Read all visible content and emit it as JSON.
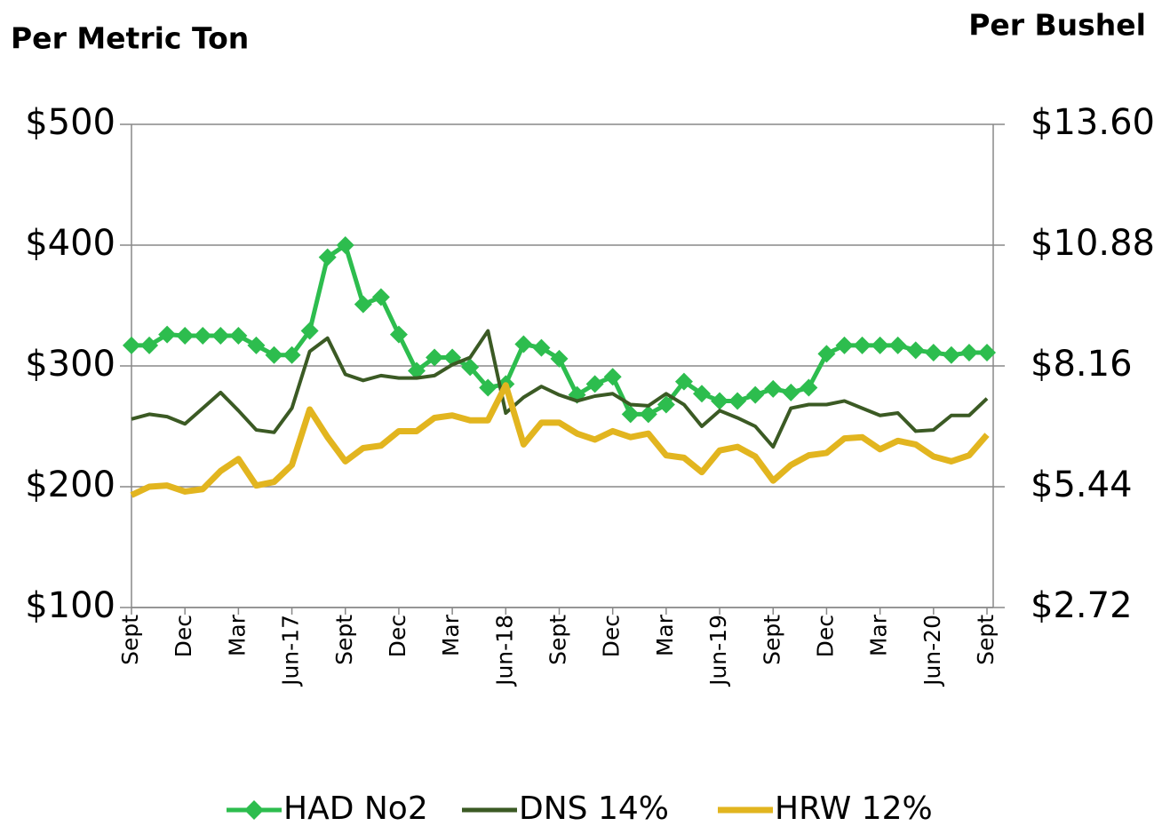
{
  "chart_data": {
    "type": "line",
    "y_axis_title": "Per Metric Ton",
    "y2_axis_title": "Per Bushel",
    "categories": [
      "Sept",
      null,
      null,
      "Dec",
      null,
      null,
      "Mar",
      null,
      null,
      "Jun-17",
      null,
      null,
      "Sept",
      null,
      null,
      "Dec",
      null,
      null,
      "Mar",
      null,
      null,
      "Jun-18",
      null,
      null,
      "Sept",
      null,
      null,
      "Dec",
      null,
      null,
      "Mar",
      null,
      null,
      "Jun-19",
      null,
      null,
      "Sept",
      null,
      null,
      "Dec",
      null,
      null,
      "Mar",
      null,
      null,
      "Jun-20",
      null,
      null,
      "Sept"
    ],
    "series": [
      {
        "name": "HAD No2",
        "color": "#2dbd4e",
        "marker": "diamond",
        "values": [
          317,
          317,
          326,
          325,
          325,
          325,
          325,
          317,
          309,
          309,
          329,
          390,
          400,
          351,
          357,
          326,
          296,
          307,
          307,
          299,
          282,
          285,
          318,
          315,
          306,
          276,
          285,
          291,
          260,
          260,
          268,
          287,
          277,
          271,
          271,
          276,
          281,
          278,
          282,
          310,
          317,
          317,
          317,
          317,
          313,
          311,
          309,
          311,
          311
        ]
      },
      {
        "name": "DNS 14%",
        "color": "#3b5a24",
        "values": [
          256,
          260,
          258,
          252,
          265,
          278,
          263,
          247,
          245,
          265,
          312,
          323,
          293,
          288,
          292,
          290,
          290,
          292,
          301,
          307,
          329,
          261,
          274,
          283,
          276,
          271,
          275,
          277,
          268,
          267,
          277,
          268,
          250,
          263,
          257,
          250,
          233,
          265,
          268,
          268,
          271,
          265,
          259,
          261,
          246,
          247,
          259,
          259,
          273
        ]
      },
      {
        "name": "HRW 12%",
        "color": "#e2b51f",
        "values": [
          193,
          200,
          201,
          196,
          198,
          213,
          223,
          201,
          204,
          218,
          264,
          241,
          221,
          232,
          234,
          246,
          246,
          257,
          259,
          255,
          255,
          284,
          235,
          253,
          253,
          244,
          239,
          246,
          241,
          244,
          226,
          224,
          212,
          230,
          233,
          225,
          205,
          218,
          226,
          228,
          240,
          241,
          231,
          238,
          235,
          225,
          221,
          226,
          243
        ]
      }
    ],
    "ylim": [
      100,
      500
    ],
    "yticks": [
      {
        "value": 100,
        "label": "$100"
      },
      {
        "value": 200,
        "label": "$200"
      },
      {
        "value": 300,
        "label": "$300"
      },
      {
        "value": 400,
        "label": "$400"
      },
      {
        "value": 500,
        "label": "$500"
      }
    ],
    "y2lim": [
      2.72,
      13.6
    ],
    "y2ticks": [
      {
        "value": 2.72,
        "label": "$2.72"
      },
      {
        "value": 5.44,
        "label": "$5.44"
      },
      {
        "value": 8.16,
        "label": "$8.16"
      },
      {
        "value": 10.88,
        "label": "$10.88"
      },
      {
        "value": 13.6,
        "label": "$13.60"
      }
    ],
    "grid": true,
    "legend": "bottom"
  }
}
